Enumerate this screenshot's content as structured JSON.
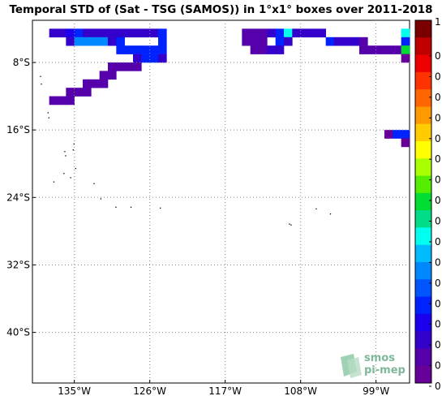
{
  "title": "Temporal STD of (Sat - TSG (SAMOS)) in 1°x1° boxes over 2011-2018",
  "x_ticks": [
    "135°W",
    "126°W",
    "117°W",
    "108°W",
    "99°W"
  ],
  "y_ticks": [
    "8°S",
    "16°S",
    "24°S",
    "32°S",
    "40°S"
  ],
  "colorbar": {
    "top_label": "1",
    "labels": [
      "0",
      "0",
      "0",
      "0",
      "0",
      "0",
      "0",
      "0",
      "0",
      "0",
      "0",
      "0",
      "0",
      "0",
      "0",
      "0",
      "0"
    ],
    "colors": [
      "#7a0000",
      "#c00000",
      "#ee0000",
      "#ff3300",
      "#ff6600",
      "#ff9900",
      "#ffcc00",
      "#ffff00",
      "#aaff00",
      "#55ee00",
      "#00dd33",
      "#00dd88",
      "#00ffee",
      "#00bbff",
      "#0088ff",
      "#0055ff",
      "#0022ff",
      "#1a00ee",
      "#3300cc",
      "#5500aa",
      "#660099"
    ]
  },
  "logo": {
    "line1": "smos",
    "line2": "pi-mep"
  },
  "map_data": {
    "lon_range": [
      -140,
      -95
    ],
    "lat_range": [
      -46,
      -3
    ],
    "gridlines_lon": [
      -135,
      -126,
      -117,
      -108,
      -99
    ],
    "gridlines_lat": [
      -8,
      -16,
      -24,
      -32,
      -40
    ],
    "cells": [
      {
        "lon": -138,
        "lat": -4,
        "c": "#3300cc"
      },
      {
        "lon": -137,
        "lat": -4,
        "c": "#3300cc"
      },
      {
        "lon": -136,
        "lat": -4,
        "c": "#1a00ee"
      },
      {
        "lon": -135,
        "lat": -4,
        "c": "#0022ff"
      },
      {
        "lon": -134,
        "lat": -4,
        "c": "#3300cc"
      },
      {
        "lon": -133,
        "lat": -4,
        "c": "#3300cc"
      },
      {
        "lon": -132,
        "lat": -4,
        "c": "#3300cc"
      },
      {
        "lon": -131,
        "lat": -4,
        "c": "#3300cc"
      },
      {
        "lon": -130,
        "lat": -4,
        "c": "#3300cc"
      },
      {
        "lon": -129,
        "lat": -4,
        "c": "#3300cc"
      },
      {
        "lon": -128,
        "lat": -4,
        "c": "#3300cc"
      },
      {
        "lon": -127,
        "lat": -4,
        "c": "#3300cc"
      },
      {
        "lon": -126,
        "lat": -4,
        "c": "#3300cc"
      },
      {
        "lon": -125,
        "lat": -4,
        "c": "#0022ff"
      },
      {
        "lon": -136,
        "lat": -5,
        "c": "#3300cc"
      },
      {
        "lon": -135,
        "lat": -5,
        "c": "#0088ff"
      },
      {
        "lon": -134,
        "lat": -5,
        "c": "#0088ff"
      },
      {
        "lon": -133,
        "lat": -5,
        "c": "#0088ff"
      },
      {
        "lon": -132,
        "lat": -5,
        "c": "#0088ff"
      },
      {
        "lon": -131,
        "lat": -5,
        "c": "#3300cc"
      },
      {
        "lon": -130,
        "lat": -5,
        "c": "#0022ff"
      },
      {
        "lon": -125,
        "lat": -5,
        "c": "#0022ff"
      },
      {
        "lon": -130,
        "lat": -6,
        "c": "#0022ff"
      },
      {
        "lon": -129,
        "lat": -6,
        "c": "#0022ff"
      },
      {
        "lon": -128,
        "lat": -6,
        "c": "#0022ff"
      },
      {
        "lon": -127,
        "lat": -6,
        "c": "#0022ff"
      },
      {
        "lon": -126,
        "lat": -6,
        "c": "#0022ff"
      },
      {
        "lon": -125,
        "lat": -6,
        "c": "#0022ff"
      },
      {
        "lon": -128,
        "lat": -7,
        "c": "#3300cc"
      },
      {
        "lon": -127,
        "lat": -7,
        "c": "#0022ff"
      },
      {
        "lon": -126,
        "lat": -7,
        "c": "#0022ff"
      },
      {
        "lon": -125,
        "lat": -7,
        "c": "#3300cc"
      },
      {
        "lon": -131,
        "lat": -8,
        "c": "#5500aa"
      },
      {
        "lon": -130,
        "lat": -8,
        "c": "#5500aa"
      },
      {
        "lon": -129,
        "lat": -8,
        "c": "#5500aa"
      },
      {
        "lon": -128,
        "lat": -8,
        "c": "#5500aa"
      },
      {
        "lon": -132,
        "lat": -9,
        "c": "#5500aa"
      },
      {
        "lon": -131,
        "lat": -9,
        "c": "#5500aa"
      },
      {
        "lon": -134,
        "lat": -10,
        "c": "#5500aa"
      },
      {
        "lon": -133,
        "lat": -10,
        "c": "#5500aa"
      },
      {
        "lon": -132,
        "lat": -10,
        "c": "#5500aa"
      },
      {
        "lon": -136,
        "lat": -11,
        "c": "#5500aa"
      },
      {
        "lon": -135,
        "lat": -11,
        "c": "#5500aa"
      },
      {
        "lon": -134,
        "lat": -11,
        "c": "#5500aa"
      },
      {
        "lon": -138,
        "lat": -12,
        "c": "#5500aa"
      },
      {
        "lon": -137,
        "lat": -12,
        "c": "#5500aa"
      },
      {
        "lon": -136,
        "lat": -12,
        "c": "#5500aa"
      },
      {
        "lon": -115,
        "lat": -4,
        "c": "#5500aa"
      },
      {
        "lon": -114,
        "lat": -4,
        "c": "#5500aa"
      },
      {
        "lon": -113,
        "lat": -4,
        "c": "#5500aa"
      },
      {
        "lon": -112,
        "lat": -4,
        "c": "#3300cc"
      },
      {
        "lon": -111,
        "lat": -4,
        "c": "#0022ff"
      },
      {
        "lon": -110,
        "lat": -4,
        "c": "#00ffee"
      },
      {
        "lon": -109,
        "lat": -4,
        "c": "#3300cc"
      },
      {
        "lon": -108,
        "lat": -4,
        "c": "#3300cc"
      },
      {
        "lon": -107,
        "lat": -4,
        "c": "#3300cc"
      },
      {
        "lon": -106,
        "lat": -4,
        "c": "#3300cc"
      },
      {
        "lon": -96,
        "lat": -4,
        "c": "#00ffee"
      },
      {
        "lon": -115,
        "lat": -5,
        "c": "#5500aa"
      },
      {
        "lon": -114,
        "lat": -5,
        "c": "#5500aa"
      },
      {
        "lon": -113,
        "lat": -5,
        "c": "#5500aa"
      },
      {
        "lon": -111,
        "lat": -5,
        "c": "#0022ff"
      },
      {
        "lon": -110,
        "lat": -5,
        "c": "#3300cc"
      },
      {
        "lon": -105,
        "lat": -5,
        "c": "#0022ff"
      },
      {
        "lon": -104,
        "lat": -5,
        "c": "#3300cc"
      },
      {
        "lon": -103,
        "lat": -5,
        "c": "#3300cc"
      },
      {
        "lon": -102,
        "lat": -5,
        "c": "#3300cc"
      },
      {
        "lon": -101,
        "lat": -5,
        "c": "#5500aa"
      },
      {
        "lon": -96,
        "lat": -5,
        "c": "#0022ff"
      },
      {
        "lon": -114,
        "lat": -6,
        "c": "#5500aa"
      },
      {
        "lon": -113,
        "lat": -6,
        "c": "#5500aa"
      },
      {
        "lon": -112,
        "lat": -6,
        "c": "#3300cc"
      },
      {
        "lon": -111,
        "lat": -6,
        "c": "#3300cc"
      },
      {
        "lon": -101,
        "lat": -6,
        "c": "#5500aa"
      },
      {
        "lon": -100,
        "lat": -6,
        "c": "#5500aa"
      },
      {
        "lon": -99,
        "lat": -6,
        "c": "#5500aa"
      },
      {
        "lon": -98,
        "lat": -6,
        "c": "#5500aa"
      },
      {
        "lon": -97,
        "lat": -6,
        "c": "#5500aa"
      },
      {
        "lon": -96,
        "lat": -6,
        "c": "#00dd33"
      },
      {
        "lon": -96,
        "lat": -7,
        "c": "#660099"
      },
      {
        "lon": -98,
        "lat": -16,
        "c": "#660099"
      },
      {
        "lon": -97,
        "lat": -16,
        "c": "#0022ff"
      },
      {
        "lon": -96,
        "lat": -16,
        "c": "#0022ff"
      },
      {
        "lon": -96,
        "lat": -17,
        "c": "#660099"
      }
    ]
  }
}
